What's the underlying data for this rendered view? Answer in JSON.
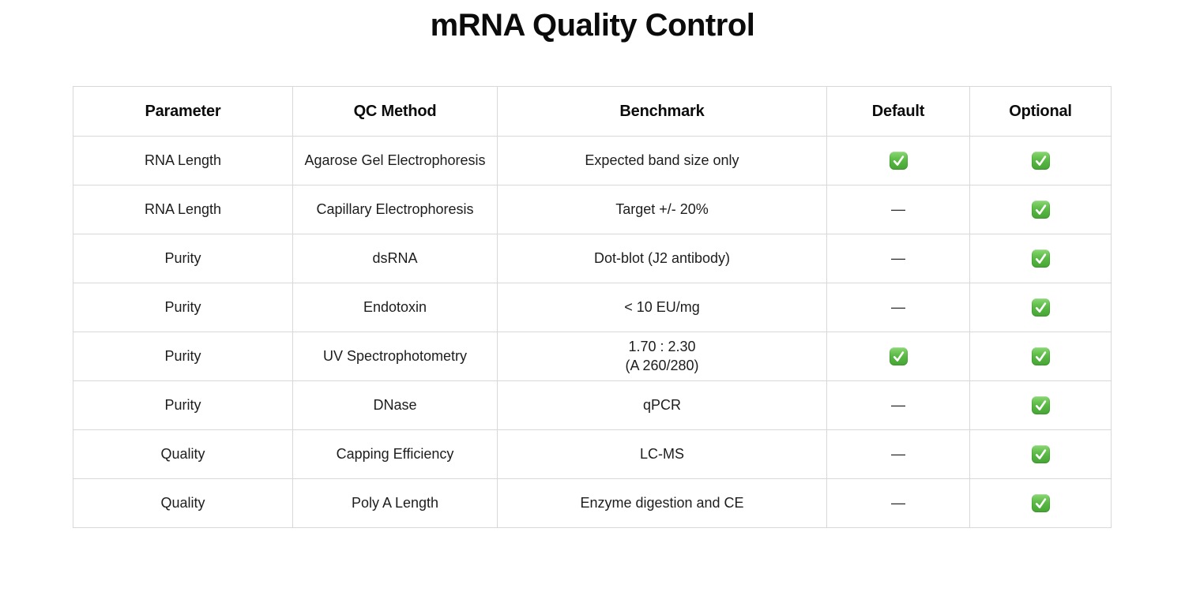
{
  "title": "mRNA Quality Control",
  "table": {
    "headers": [
      "Parameter",
      "QC Method",
      "Benchmark",
      "Default",
      "Optional"
    ],
    "dash_char": "—",
    "check_icon_name": "green-check-emoji",
    "rows": [
      {
        "parameter": "RNA Length",
        "qc_method": "Agarose Gel Electrophoresis",
        "benchmark": "Expected band size only",
        "default": "check",
        "optional": "check"
      },
      {
        "parameter": "RNA Length",
        "qc_method": "Capillary Electrophoresis",
        "benchmark": "Target +/- 20%",
        "default": "dash",
        "optional": "check"
      },
      {
        "parameter": "Purity",
        "qc_method": "dsRNA",
        "benchmark": "Dot-blot (J2 antibody)",
        "default": "dash",
        "optional": "check"
      },
      {
        "parameter": "Purity",
        "qc_method": "Endotoxin",
        "benchmark": "< 10 EU/mg",
        "default": "dash",
        "optional": "check"
      },
      {
        "parameter": "Purity",
        "qc_method": "UV Spectrophotometry",
        "benchmark": "1.70 : 2.30\n(A 260/280)",
        "default": "check",
        "optional": "check"
      },
      {
        "parameter": "Purity",
        "qc_method": "DNase",
        "benchmark": "qPCR",
        "default": "dash",
        "optional": "check"
      },
      {
        "parameter": "Quality",
        "qc_method": "Capping Efficiency",
        "benchmark": "LC-MS",
        "default": "dash",
        "optional": "check"
      },
      {
        "parameter": "Quality",
        "qc_method": "Poly A Length",
        "benchmark": "Enzyme digestion and CE",
        "default": "dash",
        "optional": "check"
      }
    ]
  },
  "colors": {
    "check_green_top": "#8ad873",
    "check_green_bottom": "#45a334",
    "grid_border": "#d8d8d8",
    "text": "#1d1d1d"
  }
}
